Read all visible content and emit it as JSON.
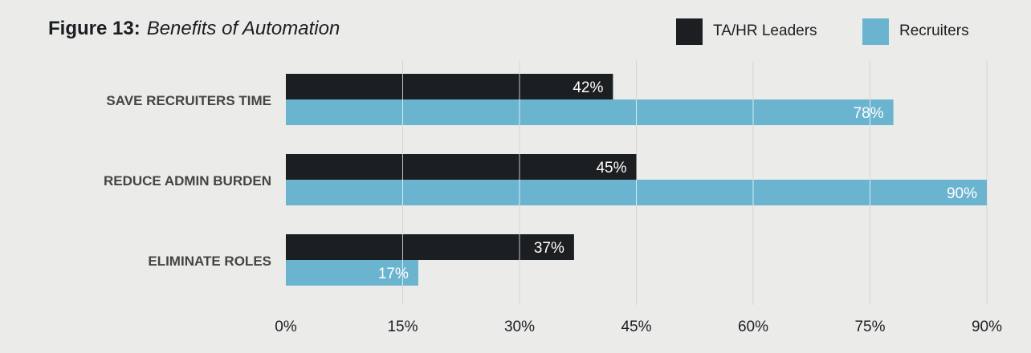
{
  "title": {
    "label": "Figure 13:",
    "subtitle": "Benefits of Automation"
  },
  "colors": {
    "background": "#ebebe9",
    "ta_hr_leaders": "#1b1f22",
    "recruiters": "#6bb4d0",
    "grid": "#d4d4d4",
    "text": "#1b1f22",
    "category_text": "#444444"
  },
  "chart_data": {
    "type": "bar",
    "orientation": "horizontal",
    "title": "Benefits of Automation",
    "categories": [
      "SAVE RECRUITERS TIME",
      "REDUCE ADMIN BURDEN",
      "ELIMINATE ROLES"
    ],
    "series": [
      {
        "name": "TA/HR Leaders",
        "values": [
          42,
          45,
          37
        ],
        "labels": [
          "42%",
          "45%",
          "37%"
        ]
      },
      {
        "name": "Recruiters",
        "values": [
          78,
          90,
          17
        ],
        "labels": [
          "78%",
          "90%",
          "17%"
        ]
      }
    ],
    "xlim": [
      0,
      90
    ],
    "ticks": [
      0,
      15,
      30,
      45,
      60,
      75,
      90
    ],
    "tick_labels": [
      "0%",
      "15%",
      "30%",
      "45%",
      "60%",
      "75%",
      "90%"
    ],
    "grid": true,
    "legend": "top-right"
  }
}
